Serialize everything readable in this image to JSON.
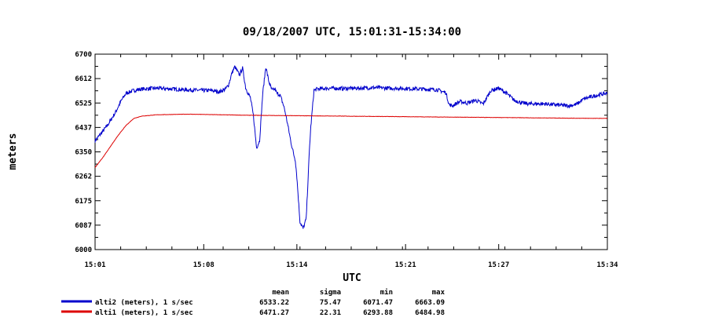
{
  "chart_data": {
    "type": "line",
    "title": "09/18/2007  UTC, 15:01:31-15:34:00",
    "xlabel": "UTC",
    "ylabel": "meters",
    "x_ticks": [
      "15:01",
      "15:08",
      "15:14",
      "15:21",
      "15:27",
      "15:34"
    ],
    "x_tick_minutes": [
      0,
      7,
      13,
      20,
      26,
      33
    ],
    "y_ticks": [
      "6000",
      "6087",
      "6175",
      "6262",
      "6350",
      "6437",
      "6525",
      "6612",
      "6700"
    ],
    "ylim": [
      6000,
      6700
    ],
    "xlim_minutes": [
      0,
      33
    ],
    "grid": false,
    "stats_headers": [
      "mean",
      "sigma",
      "min",
      "max"
    ],
    "series": [
      {
        "name": "alti2 (meters), 1 s/sec",
        "color": "#0000cc",
        "stats": [
          "6533.22",
          "75.47",
          "6071.47",
          "6663.09"
        ],
        "x": [
          0,
          0.3,
          0.8,
          1.3,
          1.7,
          2,
          2.5,
          3,
          4,
          5,
          6,
          7,
          7.5,
          8,
          8.4,
          8.6,
          8.8,
          9,
          9.1,
          9.3,
          9.5,
          9.7,
          9.9,
          10,
          10.2,
          10.4,
          10.6,
          10.8,
          11,
          11.2,
          11.4,
          11.6,
          11.7,
          11.9,
          12,
          12.2,
          12.4,
          12.6,
          12.8,
          12.9,
          13,
          13.1,
          13.2,
          13.4,
          13.6,
          13.8,
          13.9,
          14.1,
          14.3,
          15,
          16,
          17,
          18,
          19,
          20,
          21,
          22,
          22.6,
          22.8,
          23,
          23.5,
          24,
          24.5,
          25,
          25.5,
          26,
          26.5,
          27,
          27.5,
          28,
          29,
          30,
          30.5,
          31,
          31.5,
          32,
          32.5,
          33
        ],
        "y": [
          6390,
          6410,
          6445,
          6490,
          6535,
          6560,
          6570,
          6575,
          6578,
          6575,
          6572,
          6570,
          6570,
          6565,
          6575,
          6590,
          6630,
          6655,
          6645,
          6625,
          6650,
          6580,
          6555,
          6545,
          6480,
          6365,
          6390,
          6560,
          6655,
          6600,
          6570,
          6575,
          6560,
          6555,
          6540,
          6505,
          6450,
          6390,
          6340,
          6320,
          6260,
          6180,
          6100,
          6075,
          6110,
          6350,
          6440,
          6570,
          6575,
          6578,
          6577,
          6578,
          6580,
          6578,
          6577,
          6575,
          6573,
          6562,
          6520,
          6515,
          6530,
          6525,
          6535,
          6522,
          6570,
          6578,
          6560,
          6535,
          6525,
          6522,
          6522,
          6517,
          6515,
          6520,
          6540,
          6548,
          6555,
          6560
        ]
      },
      {
        "name": "alti1 (meters), 1 s/sec",
        "color": "#dd0000",
        "stats": [
          "6471.27",
          "22.31",
          "6293.88",
          "6484.98"
        ],
        "x": [
          0,
          0.5,
          1,
          1.5,
          2,
          2.5,
          3,
          4,
          5,
          6,
          7,
          8,
          10,
          12,
          14,
          16,
          18,
          20,
          22,
          24,
          26,
          28,
          30,
          32,
          33
        ],
        "y": [
          6294,
          6330,
          6370,
          6410,
          6445,
          6470,
          6478,
          6483,
          6484,
          6485,
          6484,
          6483,
          6481,
          6480,
          6479,
          6478,
          6477,
          6476,
          6475,
          6474,
          6473,
          6472,
          6471,
          6470,
          6470
        ]
      }
    ]
  }
}
